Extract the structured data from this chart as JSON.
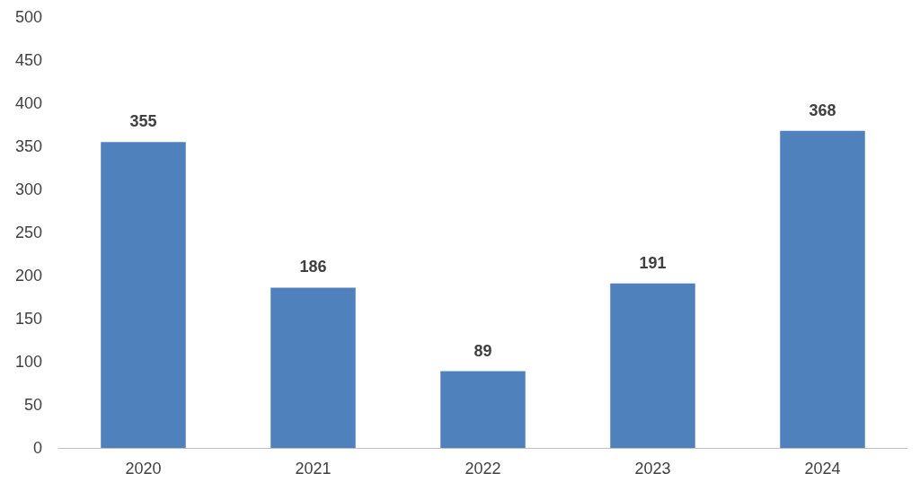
{
  "chart_data": {
    "type": "bar",
    "categories": [
      "2020",
      "2021",
      "2022",
      "2023",
      "2024"
    ],
    "values": [
      355,
      186,
      89,
      191,
      368
    ],
    "color": "#4f81bd",
    "ylim": [
      0,
      500
    ],
    "yticks": [
      0,
      50,
      100,
      150,
      200,
      250,
      300,
      350,
      400,
      450,
      500
    ],
    "grid": false,
    "data_labels": true
  }
}
